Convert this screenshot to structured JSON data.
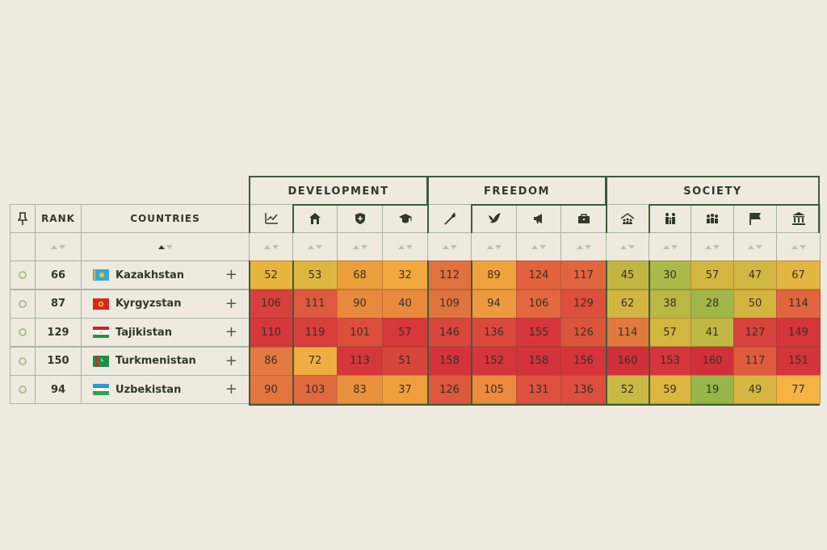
{
  "groups": [
    "DEVELOPMENT",
    "FREEDOM",
    "SOCIETY"
  ],
  "headers": {
    "rank": "RANK",
    "countries": "COUNTRIES"
  },
  "pin_icon": "pin-icon",
  "indicator_icons": [
    "trend-chart-icon",
    "home-icon",
    "shield-icon",
    "graduation-cap-icon",
    "torch-icon",
    "dove-icon",
    "megaphone-icon",
    "briefcase-icon",
    "community-icon",
    "family-icon",
    "people-group-icon",
    "flag-icon",
    "government-building-icon"
  ],
  "rows": [
    {
      "rank": "66",
      "country": "Kazakhstan",
      "flag": "kazakhstan-flag",
      "values": [
        "52",
        "53",
        "68",
        "32",
        "112",
        "89",
        "124",
        "117",
        "45",
        "30",
        "57",
        "47",
        "67"
      ],
      "colors": [
        "#e7b53d",
        "#ddb640",
        "#ea9f3c",
        "#f0a83f",
        "#e07240",
        "#efa33d",
        "#e3633f",
        "#e1663f",
        "#c2b643",
        "#a9b94a",
        "#d3b640",
        "#d2b642",
        "#e3b642"
      ]
    },
    {
      "rank": "87",
      "country": "Kyrgyzstan",
      "flag": "kyrgyzstan-flag",
      "values": [
        "106",
        "111",
        "90",
        "40",
        "109",
        "94",
        "106",
        "129",
        "62",
        "38",
        "28",
        "50",
        "114"
      ],
      "colors": [
        "#d8403d",
        "#de5a3f",
        "#e88a3d",
        "#e8893c",
        "#e0743f",
        "#ec9a3d",
        "#e3683f",
        "#dc4f3d",
        "#d2b641",
        "#b9b746",
        "#a0b74a",
        "#d4b43f",
        "#e0663f"
      ]
    },
    {
      "rank": "129",
      "country": "Tajikistan",
      "flag": "tajikistan-flag",
      "values": [
        "110",
        "119",
        "101",
        "57",
        "146",
        "136",
        "155",
        "126",
        "114",
        "57",
        "41",
        "127",
        "149"
      ],
      "colors": [
        "#d4383b",
        "#d83e3c",
        "#dc4f3c",
        "#d6383b",
        "#d8463c",
        "#db493c",
        "#d6353b",
        "#db553d",
        "#e07a40",
        "#d3b640",
        "#c0b845",
        "#d8423c",
        "#d4363b"
      ]
    },
    {
      "rank": "150",
      "country": "Turkmenistan",
      "flag": "turkmenistan-flag",
      "values": [
        "86",
        "72",
        "113",
        "51",
        "158",
        "152",
        "158",
        "156",
        "160",
        "153",
        "160",
        "117",
        "151"
      ],
      "colors": [
        "#e37a40",
        "#f0ae42",
        "#d6373b",
        "#d8453c",
        "#d5333b",
        "#d5363b",
        "#d5333b",
        "#d5343b",
        "#d1303a",
        "#d5353b",
        "#d1303a",
        "#de5b3e",
        "#d4343b"
      ]
    },
    {
      "rank": "94",
      "country": "Uzbekistan",
      "flag": "uzbekistan-flag",
      "values": [
        "90",
        "103",
        "83",
        "37",
        "126",
        "105",
        "131",
        "136",
        "52",
        "59",
        "19",
        "49",
        "77"
      ],
      "colors": [
        "#e3763f",
        "#e06a3f",
        "#ea913d",
        "#ee9f3c",
        "#dc593e",
        "#ea8b3d",
        "#dd513d",
        "#db4f3c",
        "#c9b843",
        "#dbb741",
        "#97b64a",
        "#d6b642",
        "#f3b443"
      ]
    }
  ]
}
